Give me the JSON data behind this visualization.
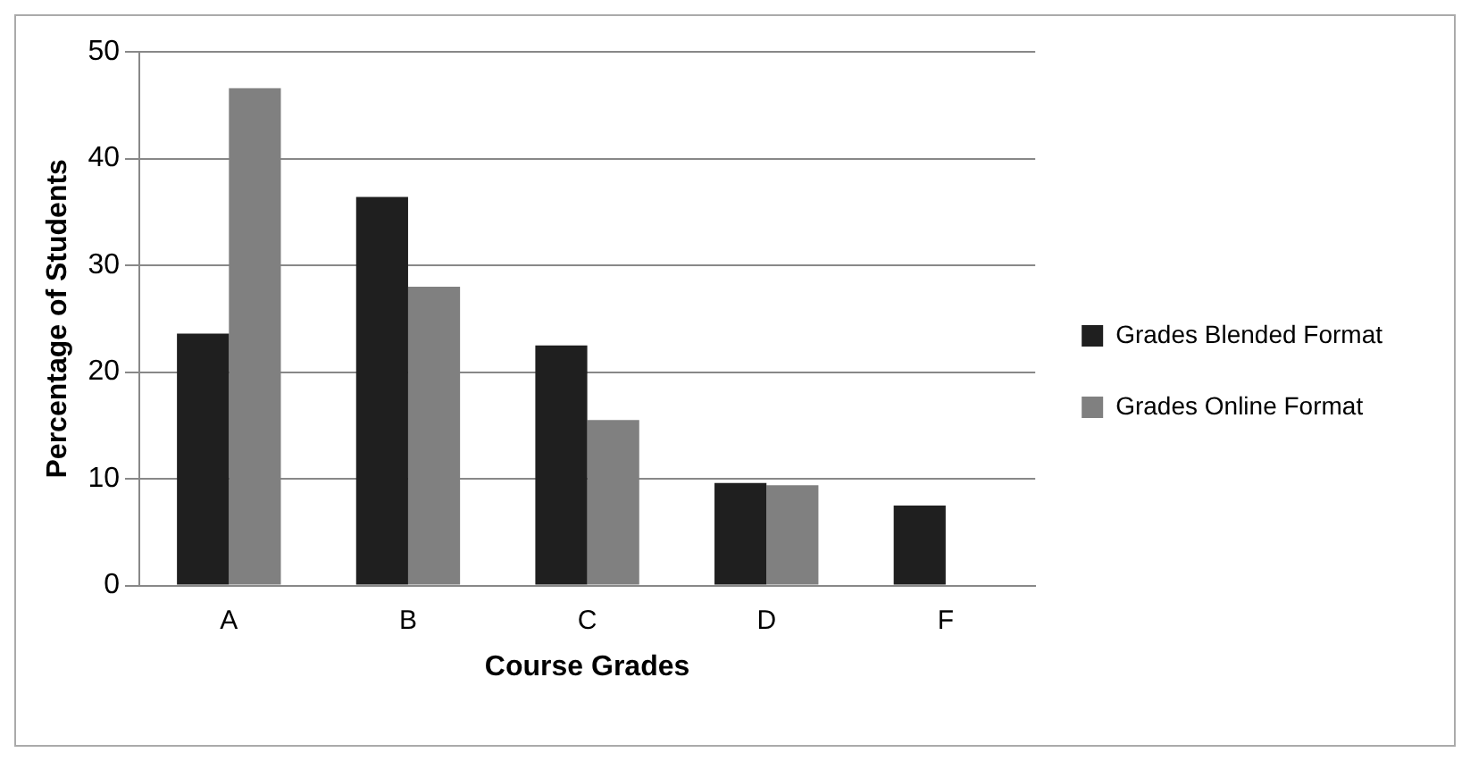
{
  "chart_data": {
    "type": "bar",
    "xlabel": "Course Grades",
    "ylabel": "Percentage of Students",
    "categories": [
      "A",
      "B",
      "C",
      "D",
      "F"
    ],
    "series": [
      {
        "name": "Grades Blended Format",
        "color": "#1f1f1f",
        "values": [
          23.6,
          36.4,
          22.5,
          9.6,
          7.5
        ]
      },
      {
        "name": "Grades Online Format",
        "color": "#808080",
        "values": [
          46.6,
          28.0,
          15.5,
          9.4,
          null
        ]
      }
    ],
    "ylim": [
      0,
      50
    ],
    "yticks": [
      0,
      10,
      20,
      30,
      40,
      50
    ],
    "grid": "y",
    "legend": "right"
  }
}
